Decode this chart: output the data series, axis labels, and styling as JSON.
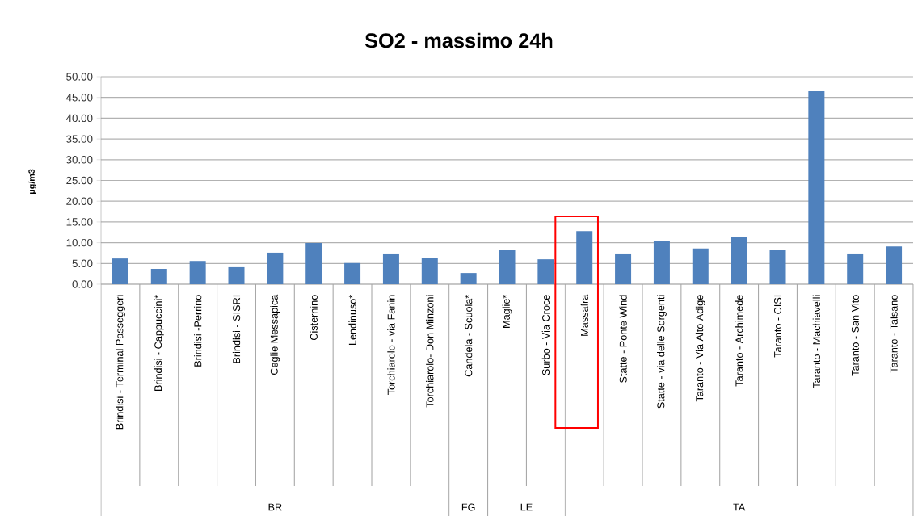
{
  "chart_data": {
    "type": "bar",
    "title": "SO2 - massimo 24h",
    "ylabel": "μg/m3",
    "categories": [
      "Brindisi - Terminal Passeggeri",
      "Brindisi - Cappuccini*",
      "Brindisi -Perrino",
      "Brindisi - SISRI",
      "Ceglie Messapica",
      "Cisternino",
      "Lendinuso*",
      "Torchiarolo - via Fanin",
      "Torchiarolo- Don Minzoni",
      "Candela - Scuola*",
      "Maglie*",
      "Surbo - Via Croce",
      "Massafra",
      "Statte - Ponte Wind",
      "Statte - via delle Sorgenti",
      "Taranto - Via Alto Adige",
      "Taranto -  Archimede",
      "Taranto - CISI",
      "Taranto - Machiavelli",
      "Taranto - San Vito",
      "Taranto - Talsano"
    ],
    "values": [
      6.2,
      3.7,
      5.6,
      4.1,
      7.6,
      9.9,
      5.1,
      7.4,
      6.4,
      2.7,
      8.2,
      6.0,
      12.8,
      7.4,
      10.3,
      8.6,
      11.5,
      8.2,
      46.5,
      7.4,
      9.1
    ],
    "color": "#4f81bd",
    "ylim": [
      0,
      50
    ],
    "yticks": [
      {
        "value": 0,
        "label": "0.00"
      },
      {
        "value": 5,
        "label": "5.00"
      },
      {
        "value": 10,
        "label": "10.00"
      },
      {
        "value": 15,
        "label": "15.00"
      },
      {
        "value": 20,
        "label": "20.00"
      },
      {
        "value": 25,
        "label": "25.00"
      },
      {
        "value": 30,
        "label": "30.00"
      },
      {
        "value": 35,
        "label": "35.00"
      },
      {
        "value": 40,
        "label": "40.00"
      },
      {
        "value": 45,
        "label": "45.00"
      },
      {
        "value": 50,
        "label": "50.00"
      }
    ],
    "grid": "y",
    "annotations": [
      "BR",
      "FG",
      "LE",
      "TA"
    ]
  }
}
